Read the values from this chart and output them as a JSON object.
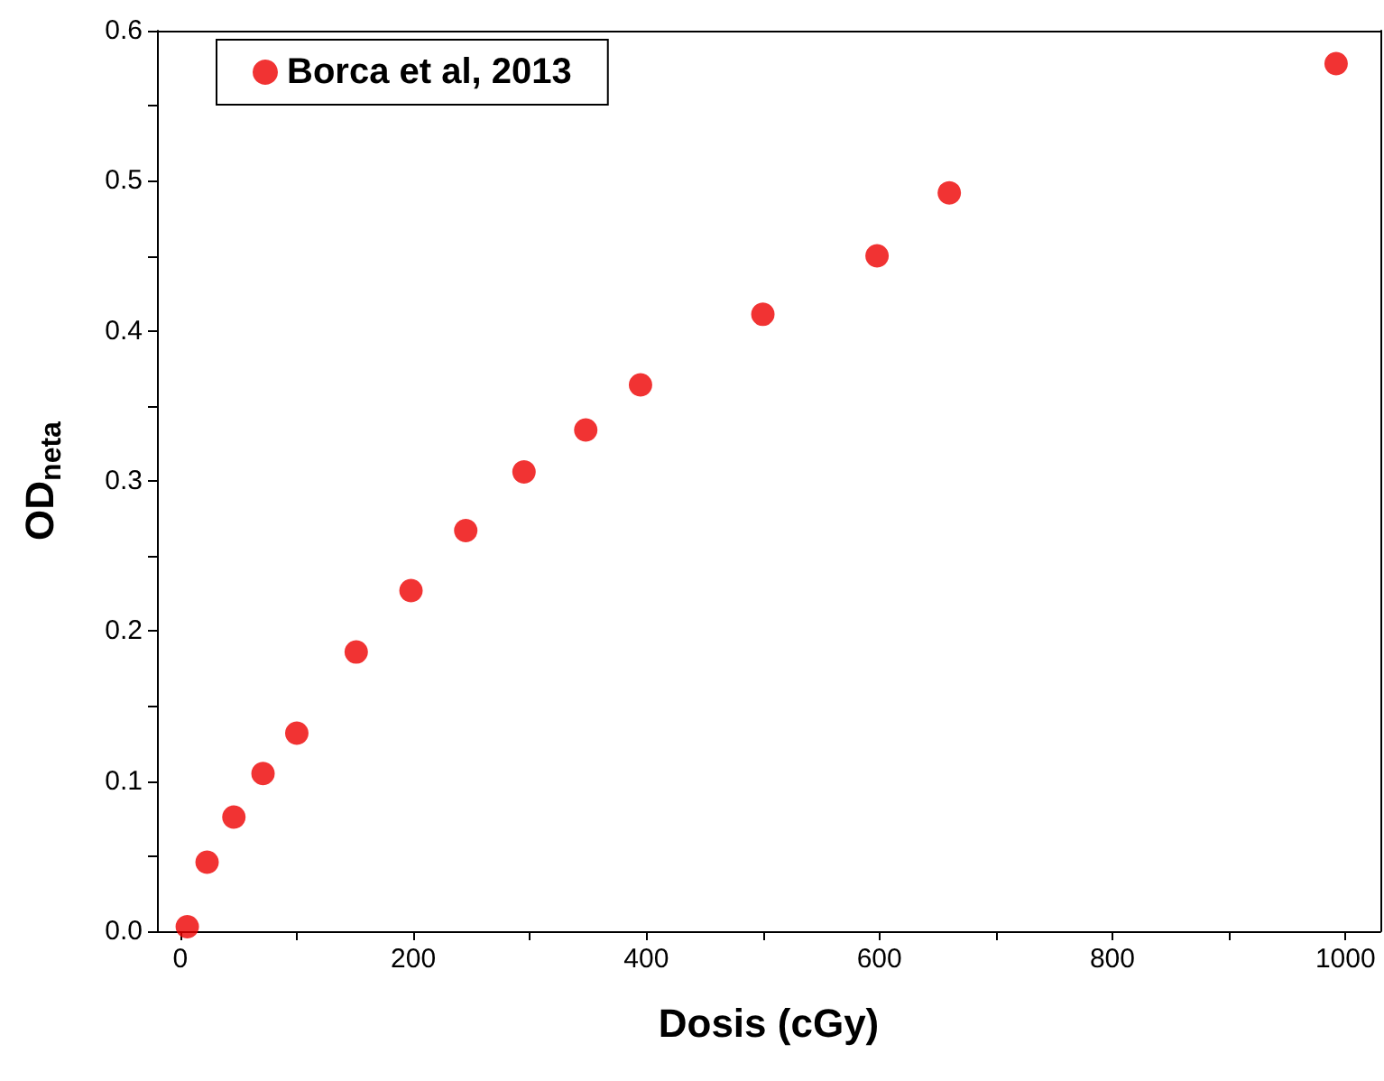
{
  "chart_data": {
    "type": "scatter",
    "xlabel": "Dosis (cGy)",
    "ylabel": "OD$_{neta}$",
    "series": [
      {
        "name": "Borca et al, 2013",
        "color": "#ee0000",
        "x": [
          6,
          23,
          46,
          71,
          100,
          151,
          198,
          245,
          295,
          348,
          395,
          500,
          598,
          660,
          992
        ],
        "values": [
          0.003,
          0.046,
          0.076,
          0.105,
          0.132,
          0.186,
          0.227,
          0.267,
          0.306,
          0.334,
          0.364,
          0.411,
          0.45,
          0.492,
          0.578
        ]
      }
    ],
    "xlim": [
      -20,
      1030
    ],
    "xticks": [
      0,
      {
        "value": 100,
        "label": null
      },
      200,
      {
        "value": 300,
        "label": null
      },
      400,
      {
        "value": 500,
        "label": null
      },
      600,
      {
        "value": 700,
        "label": null
      },
      800,
      {
        "value": 900,
        "label": null
      },
      1000
    ],
    "ylim": [
      0,
      0.6
    ],
    "yticks": [
      "0.0",
      {
        "value": 0.05,
        "label": null
      },
      0.1,
      {
        "value": 0.15,
        "label": null
      },
      0.2,
      {
        "value": 0.25,
        "label": null
      },
      0.3,
      {
        "value": 0.35,
        "label": null
      },
      0.4,
      {
        "value": 0.45,
        "label": null
      },
      0.5,
      {
        "value": 0.55,
        "label": null
      },
      0.6
    ],
    "grid": false,
    "legend": "top left",
    "marker": "circle"
  }
}
